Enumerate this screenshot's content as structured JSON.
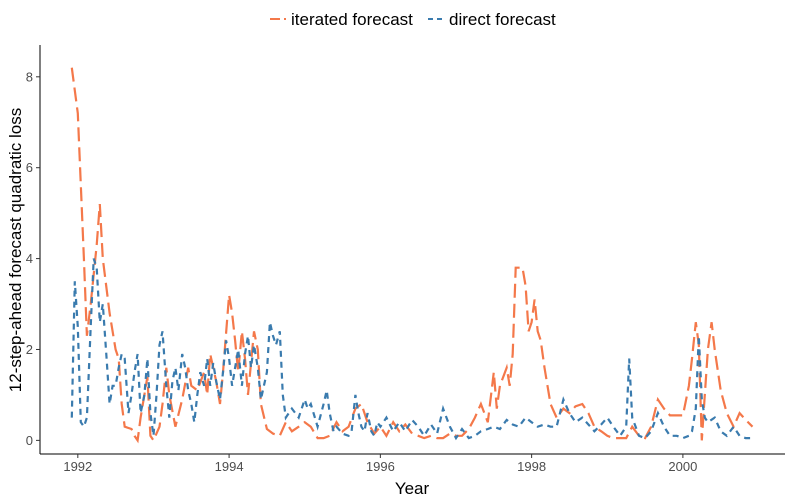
{
  "chart_data": {
    "type": "line",
    "xlabel": "Year",
    "ylabel": "12-step-ahead forecast quadratic loss",
    "xlim": [
      1991.5,
      2001.35
    ],
    "ylim": [
      -0.3,
      8.7
    ],
    "x_ticks": [
      1992,
      1994,
      1996,
      1998,
      2000
    ],
    "y_ticks": [
      0,
      2,
      4,
      6,
      8
    ],
    "legend_position": "top",
    "grid": false,
    "series": [
      {
        "name": "iterated forecast",
        "color": "#F4784A",
        "dash": "long-dash",
        "points": [
          [
            1991.92,
            8.2
          ],
          [
            1992.0,
            7.2
          ],
          [
            1992.08,
            4.0
          ],
          [
            1992.12,
            2.3
          ],
          [
            1992.17,
            3.0
          ],
          [
            1992.25,
            4.3
          ],
          [
            1992.29,
            5.2
          ],
          [
            1992.33,
            4.0
          ],
          [
            1992.42,
            2.8
          ],
          [
            1992.5,
            2.0
          ],
          [
            1992.54,
            1.8
          ],
          [
            1992.58,
            0.8
          ],
          [
            1992.62,
            0.3
          ],
          [
            1992.71,
            0.25
          ],
          [
            1992.75,
            0.1
          ],
          [
            1992.79,
            0.0
          ],
          [
            1992.83,
            0.5
          ],
          [
            1992.92,
            1.4
          ],
          [
            1992.96,
            0.1
          ],
          [
            1993.0,
            0.0
          ],
          [
            1993.08,
            0.3
          ],
          [
            1993.12,
            0.8
          ],
          [
            1993.17,
            1.6
          ],
          [
            1993.21,
            1.0
          ],
          [
            1993.29,
            0.3
          ],
          [
            1993.38,
            0.9
          ],
          [
            1993.46,
            1.6
          ],
          [
            1993.5,
            1.2
          ],
          [
            1993.58,
            1.1
          ],
          [
            1993.67,
            1.5
          ],
          [
            1993.71,
            1.0
          ],
          [
            1993.75,
            1.9
          ],
          [
            1993.83,
            1.3
          ],
          [
            1993.88,
            0.8
          ],
          [
            1993.92,
            1.5
          ],
          [
            1994.0,
            3.2
          ],
          [
            1994.04,
            2.8
          ],
          [
            1994.08,
            2.2
          ],
          [
            1994.12,
            1.5
          ],
          [
            1994.17,
            2.4
          ],
          [
            1994.21,
            1.8
          ],
          [
            1994.25,
            1.0
          ],
          [
            1994.33,
            2.4
          ],
          [
            1994.38,
            2.0
          ],
          [
            1994.42,
            0.8
          ],
          [
            1994.5,
            0.25
          ],
          [
            1994.58,
            0.15
          ],
          [
            1994.67,
            0.1
          ],
          [
            1994.75,
            0.4
          ],
          [
            1994.83,
            0.2
          ],
          [
            1994.92,
            0.3
          ],
          [
            1995.0,
            0.4
          ],
          [
            1995.08,
            0.3
          ],
          [
            1995.17,
            0.05
          ],
          [
            1995.25,
            0.05
          ],
          [
            1995.33,
            0.1
          ],
          [
            1995.42,
            0.4
          ],
          [
            1995.5,
            0.2
          ],
          [
            1995.58,
            0.3
          ],
          [
            1995.67,
            0.7
          ],
          [
            1995.75,
            0.8
          ],
          [
            1995.83,
            0.4
          ],
          [
            1995.92,
            0.15
          ],
          [
            1996.0,
            0.3
          ],
          [
            1996.08,
            0.1
          ],
          [
            1996.17,
            0.4
          ],
          [
            1996.25,
            0.2
          ],
          [
            1996.33,
            0.35
          ],
          [
            1996.42,
            0.15
          ],
          [
            1996.5,
            0.1
          ],
          [
            1996.58,
            0.05
          ],
          [
            1996.67,
            0.1
          ],
          [
            1996.75,
            0.05
          ],
          [
            1996.83,
            0.05
          ],
          [
            1996.92,
            0.15
          ],
          [
            1997.0,
            0.1
          ],
          [
            1997.08,
            0.1
          ],
          [
            1997.17,
            0.25
          ],
          [
            1997.25,
            0.5
          ],
          [
            1997.33,
            0.8
          ],
          [
            1997.42,
            0.4
          ],
          [
            1997.5,
            1.5
          ],
          [
            1997.54,
            0.7
          ],
          [
            1997.58,
            1.2
          ],
          [
            1997.67,
            1.6
          ],
          [
            1997.71,
            1.2
          ],
          [
            1997.75,
            1.9
          ],
          [
            1997.79,
            3.8
          ],
          [
            1997.88,
            3.8
          ],
          [
            1997.92,
            3.4
          ],
          [
            1997.96,
            2.4
          ],
          [
            1998.0,
            2.6
          ],
          [
            1998.04,
            3.1
          ],
          [
            1998.08,
            2.4
          ],
          [
            1998.12,
            2.2
          ],
          [
            1998.17,
            1.6
          ],
          [
            1998.25,
            0.8
          ],
          [
            1998.33,
            0.5
          ],
          [
            1998.42,
            0.7
          ],
          [
            1998.5,
            0.6
          ],
          [
            1998.58,
            0.75
          ],
          [
            1998.67,
            0.8
          ],
          [
            1998.75,
            0.6
          ],
          [
            1998.83,
            0.3
          ],
          [
            1998.92,
            0.2
          ],
          [
            1999.0,
            0.1
          ],
          [
            1999.08,
            0.05
          ],
          [
            1999.17,
            0.05
          ],
          [
            1999.25,
            0.05
          ],
          [
            1999.33,
            0.3
          ],
          [
            1999.42,
            0.1
          ],
          [
            1999.5,
            0.05
          ],
          [
            1999.58,
            0.3
          ],
          [
            1999.67,
            0.9
          ],
          [
            1999.75,
            0.7
          ],
          [
            1999.83,
            0.55
          ],
          [
            1999.92,
            0.55
          ],
          [
            2000.0,
            0.55
          ],
          [
            2000.08,
            1.2
          ],
          [
            2000.12,
            1.8
          ],
          [
            2000.17,
            2.6
          ],
          [
            2000.21,
            2.1
          ],
          [
            2000.25,
            0.0
          ],
          [
            2000.29,
            1.0
          ],
          [
            2000.33,
            2.0
          ],
          [
            2000.38,
            2.6
          ],
          [
            2000.42,
            2.0
          ],
          [
            2000.5,
            1.1
          ],
          [
            2000.58,
            0.6
          ],
          [
            2000.67,
            0.3
          ],
          [
            2000.75,
            0.6
          ],
          [
            2000.83,
            0.45
          ],
          [
            2000.92,
            0.3
          ]
        ]
      },
      {
        "name": "direct forecast",
        "color": "#3A7BAE",
        "dash": "short-dash",
        "points": [
          [
            1991.92,
            0.5
          ],
          [
            1991.96,
            3.5
          ],
          [
            1992.0,
            2.5
          ],
          [
            1992.04,
            0.4
          ],
          [
            1992.08,
            0.3
          ],
          [
            1992.12,
            0.5
          ],
          [
            1992.17,
            2.5
          ],
          [
            1992.21,
            4.0
          ],
          [
            1992.25,
            3.8
          ],
          [
            1992.29,
            2.6
          ],
          [
            1992.33,
            3.0
          ],
          [
            1992.38,
            1.8
          ],
          [
            1992.42,
            0.8
          ],
          [
            1992.46,
            1.2
          ],
          [
            1992.5,
            1.2
          ],
          [
            1992.54,
            1.6
          ],
          [
            1992.58,
            1.9
          ],
          [
            1992.62,
            1.8
          ],
          [
            1992.67,
            0.6
          ],
          [
            1992.71,
            1.0
          ],
          [
            1992.75,
            1.5
          ],
          [
            1992.79,
            1.9
          ],
          [
            1992.83,
            0.6
          ],
          [
            1992.88,
            1.0
          ],
          [
            1992.92,
            1.8
          ],
          [
            1992.96,
            0.6
          ],
          [
            1993.0,
            0.1
          ],
          [
            1993.04,
            1.0
          ],
          [
            1993.08,
            2.1
          ],
          [
            1993.12,
            2.4
          ],
          [
            1993.17,
            1.2
          ],
          [
            1993.21,
            0.5
          ],
          [
            1993.25,
            1.3
          ],
          [
            1993.29,
            1.6
          ],
          [
            1993.33,
            1.1
          ],
          [
            1993.38,
            1.9
          ],
          [
            1993.42,
            1.6
          ],
          [
            1993.46,
            1.1
          ],
          [
            1993.5,
            0.8
          ],
          [
            1993.54,
            0.4
          ],
          [
            1993.58,
            1.0
          ],
          [
            1993.62,
            1.5
          ],
          [
            1993.67,
            1.2
          ],
          [
            1993.71,
            1.8
          ],
          [
            1993.75,
            1.2
          ],
          [
            1993.79,
            1.7
          ],
          [
            1993.83,
            1.3
          ],
          [
            1993.88,
            0.9
          ],
          [
            1993.92,
            1.5
          ],
          [
            1993.96,
            2.2
          ],
          [
            1994.0,
            1.8
          ],
          [
            1994.04,
            1.2
          ],
          [
            1994.08,
            1.6
          ],
          [
            1994.12,
            2.0
          ],
          [
            1994.17,
            1.2
          ],
          [
            1994.21,
            1.9
          ],
          [
            1994.25,
            2.3
          ],
          [
            1994.29,
            1.6
          ],
          [
            1994.33,
            2.1
          ],
          [
            1994.38,
            1.6
          ],
          [
            1994.42,
            0.9
          ],
          [
            1994.46,
            1.2
          ],
          [
            1994.5,
            1.5
          ],
          [
            1994.54,
            2.6
          ],
          [
            1994.58,
            2.3
          ],
          [
            1994.62,
            2.1
          ],
          [
            1994.67,
            2.4
          ],
          [
            1994.71,
            1.0
          ],
          [
            1994.75,
            0.5
          ],
          [
            1994.79,
            0.6
          ],
          [
            1994.83,
            0.7
          ],
          [
            1994.92,
            0.5
          ],
          [
            1995.0,
            0.9
          ],
          [
            1995.04,
            0.7
          ],
          [
            1995.08,
            0.8
          ],
          [
            1995.17,
            0.3
          ],
          [
            1995.25,
            0.8
          ],
          [
            1995.29,
            1.1
          ],
          [
            1995.33,
            0.6
          ],
          [
            1995.38,
            0.2
          ],
          [
            1995.42,
            0.3
          ],
          [
            1995.5,
            0.15
          ],
          [
            1995.58,
            0.1
          ],
          [
            1995.62,
            0.2
          ],
          [
            1995.67,
            1.0
          ],
          [
            1995.71,
            0.6
          ],
          [
            1995.75,
            0.3
          ],
          [
            1995.79,
            0.2
          ],
          [
            1995.83,
            0.6
          ],
          [
            1995.88,
            0.2
          ],
          [
            1995.92,
            0.1
          ],
          [
            1995.96,
            0.4
          ],
          [
            1996.0,
            0.3
          ],
          [
            1996.08,
            0.5
          ],
          [
            1996.17,
            0.2
          ],
          [
            1996.25,
            0.4
          ],
          [
            1996.33,
            0.2
          ],
          [
            1996.42,
            0.45
          ],
          [
            1996.5,
            0.3
          ],
          [
            1996.58,
            0.1
          ],
          [
            1996.67,
            0.35
          ],
          [
            1996.75,
            0.15
          ],
          [
            1996.83,
            0.7
          ],
          [
            1996.92,
            0.3
          ],
          [
            1997.0,
            0.05
          ],
          [
            1997.08,
            0.25
          ],
          [
            1997.17,
            0.05
          ],
          [
            1997.25,
            0.1
          ],
          [
            1997.33,
            0.2
          ],
          [
            1997.42,
            0.25
          ],
          [
            1997.5,
            0.3
          ],
          [
            1997.58,
            0.25
          ],
          [
            1997.67,
            0.45
          ],
          [
            1997.75,
            0.35
          ],
          [
            1997.83,
            0.3
          ],
          [
            1997.92,
            0.5
          ],
          [
            1998.0,
            0.4
          ],
          [
            1998.08,
            0.3
          ],
          [
            1998.17,
            0.35
          ],
          [
            1998.25,
            0.3
          ],
          [
            1998.33,
            0.3
          ],
          [
            1998.42,
            0.9
          ],
          [
            1998.5,
            0.6
          ],
          [
            1998.58,
            0.4
          ],
          [
            1998.67,
            0.5
          ],
          [
            1998.75,
            0.35
          ],
          [
            1998.83,
            0.2
          ],
          [
            1998.92,
            0.35
          ],
          [
            1999.0,
            0.5
          ],
          [
            1999.08,
            0.3
          ],
          [
            1999.17,
            0.1
          ],
          [
            1999.25,
            0.3
          ],
          [
            1999.29,
            1.8
          ],
          [
            1999.33,
            0.5
          ],
          [
            1999.42,
            0.1
          ],
          [
            1999.5,
            0.05
          ],
          [
            1999.58,
            0.2
          ],
          [
            1999.67,
            0.6
          ],
          [
            1999.75,
            0.3
          ],
          [
            1999.83,
            0.1
          ],
          [
            1999.92,
            0.1
          ],
          [
            2000.0,
            0.05
          ],
          [
            2000.08,
            0.1
          ],
          [
            2000.12,
            0.2
          ],
          [
            2000.17,
            0.7
          ],
          [
            2000.21,
            2.3
          ],
          [
            2000.25,
            0.9
          ],
          [
            2000.29,
            0.5
          ],
          [
            2000.33,
            0.4
          ],
          [
            2000.42,
            0.5
          ],
          [
            2000.5,
            0.2
          ],
          [
            2000.58,
            0.1
          ],
          [
            2000.67,
            0.3
          ],
          [
            2000.75,
            0.1
          ],
          [
            2000.83,
            0.05
          ],
          [
            2000.92,
            0.05
          ]
        ]
      }
    ]
  }
}
